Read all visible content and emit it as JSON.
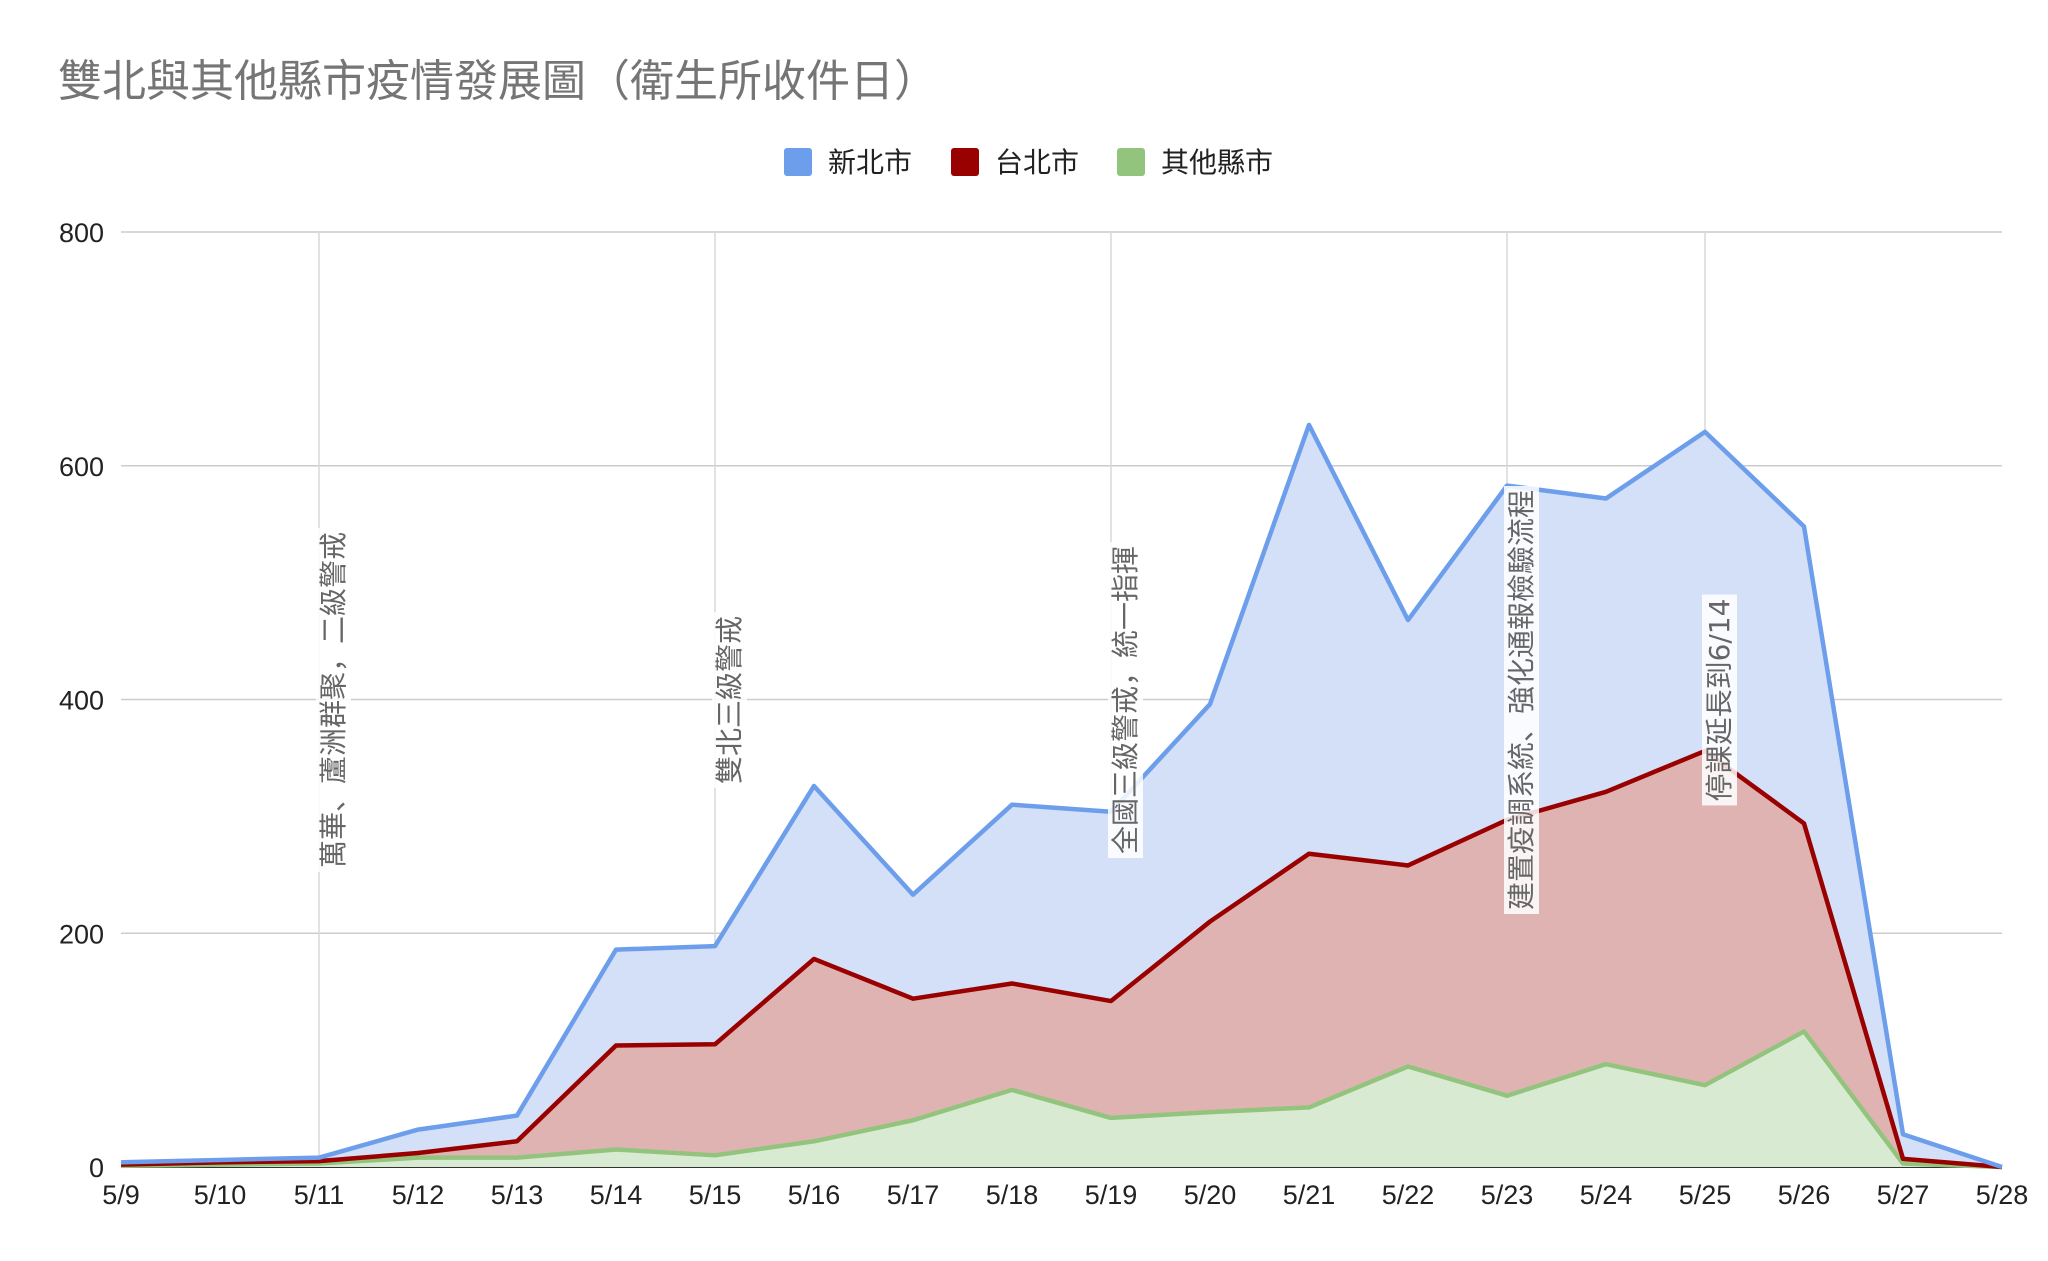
{
  "chart_data": {
    "type": "area",
    "stacked": true,
    "title": "雙北與其他縣市疫情發展圖（衛生所收件日）",
    "xlabel": "",
    "ylabel": "",
    "ylim": [
      0,
      800
    ],
    "yticks": [
      0,
      200,
      400,
      600,
      800
    ],
    "grid": true,
    "legend_position": "top-center",
    "categories": [
      "5/9",
      "5/10",
      "5/11",
      "5/12",
      "5/13",
      "5/14",
      "5/15",
      "5/16",
      "5/17",
      "5/18",
      "5/19",
      "5/20",
      "5/21",
      "5/22",
      "5/23",
      "5/24",
      "5/25",
      "5/26",
      "5/27",
      "5/28"
    ],
    "series": [
      {
        "name": "其他縣市",
        "color": "#93c47d",
        "fill": "#d9ead3",
        "values": [
          1,
          2,
          3,
          8,
          8,
          15,
          10,
          22,
          40,
          66,
          42,
          47,
          51,
          86,
          61,
          88,
          70,
          116,
          3,
          0
        ]
      },
      {
        "name": "台北市",
        "color": "#990000",
        "fill": "#e0b3b3",
        "values": [
          1,
          2,
          2,
          4,
          14,
          89,
          95,
          156,
          104,
          91,
          100,
          163,
          217,
          172,
          236,
          233,
          286,
          178,
          4,
          0
        ]
      },
      {
        "name": "新北市",
        "color": "#6d9eeb",
        "fill": "#d3e0f7",
        "values": [
          2,
          2,
          3,
          20,
          22,
          82,
          84,
          148,
          89,
          153,
          162,
          186,
          367,
          210,
          286,
          251,
          273,
          254,
          21,
          0
        ]
      }
    ],
    "legend_order": [
      "新北市",
      "台北市",
      "其他縣市"
    ],
    "annotations": [
      {
        "x": "5/11",
        "text": "萬華、蘆洲群聚，二級警戒"
      },
      {
        "x": "5/15",
        "text": "雙北三級警戒"
      },
      {
        "x": "5/19",
        "text": "全國三級警戒，統一指揮"
      },
      {
        "x": "5/23",
        "text": "建置疫調系統、強化通報檢驗流程"
      },
      {
        "x": "5/25",
        "text": "停課延長到6/14"
      }
    ]
  }
}
